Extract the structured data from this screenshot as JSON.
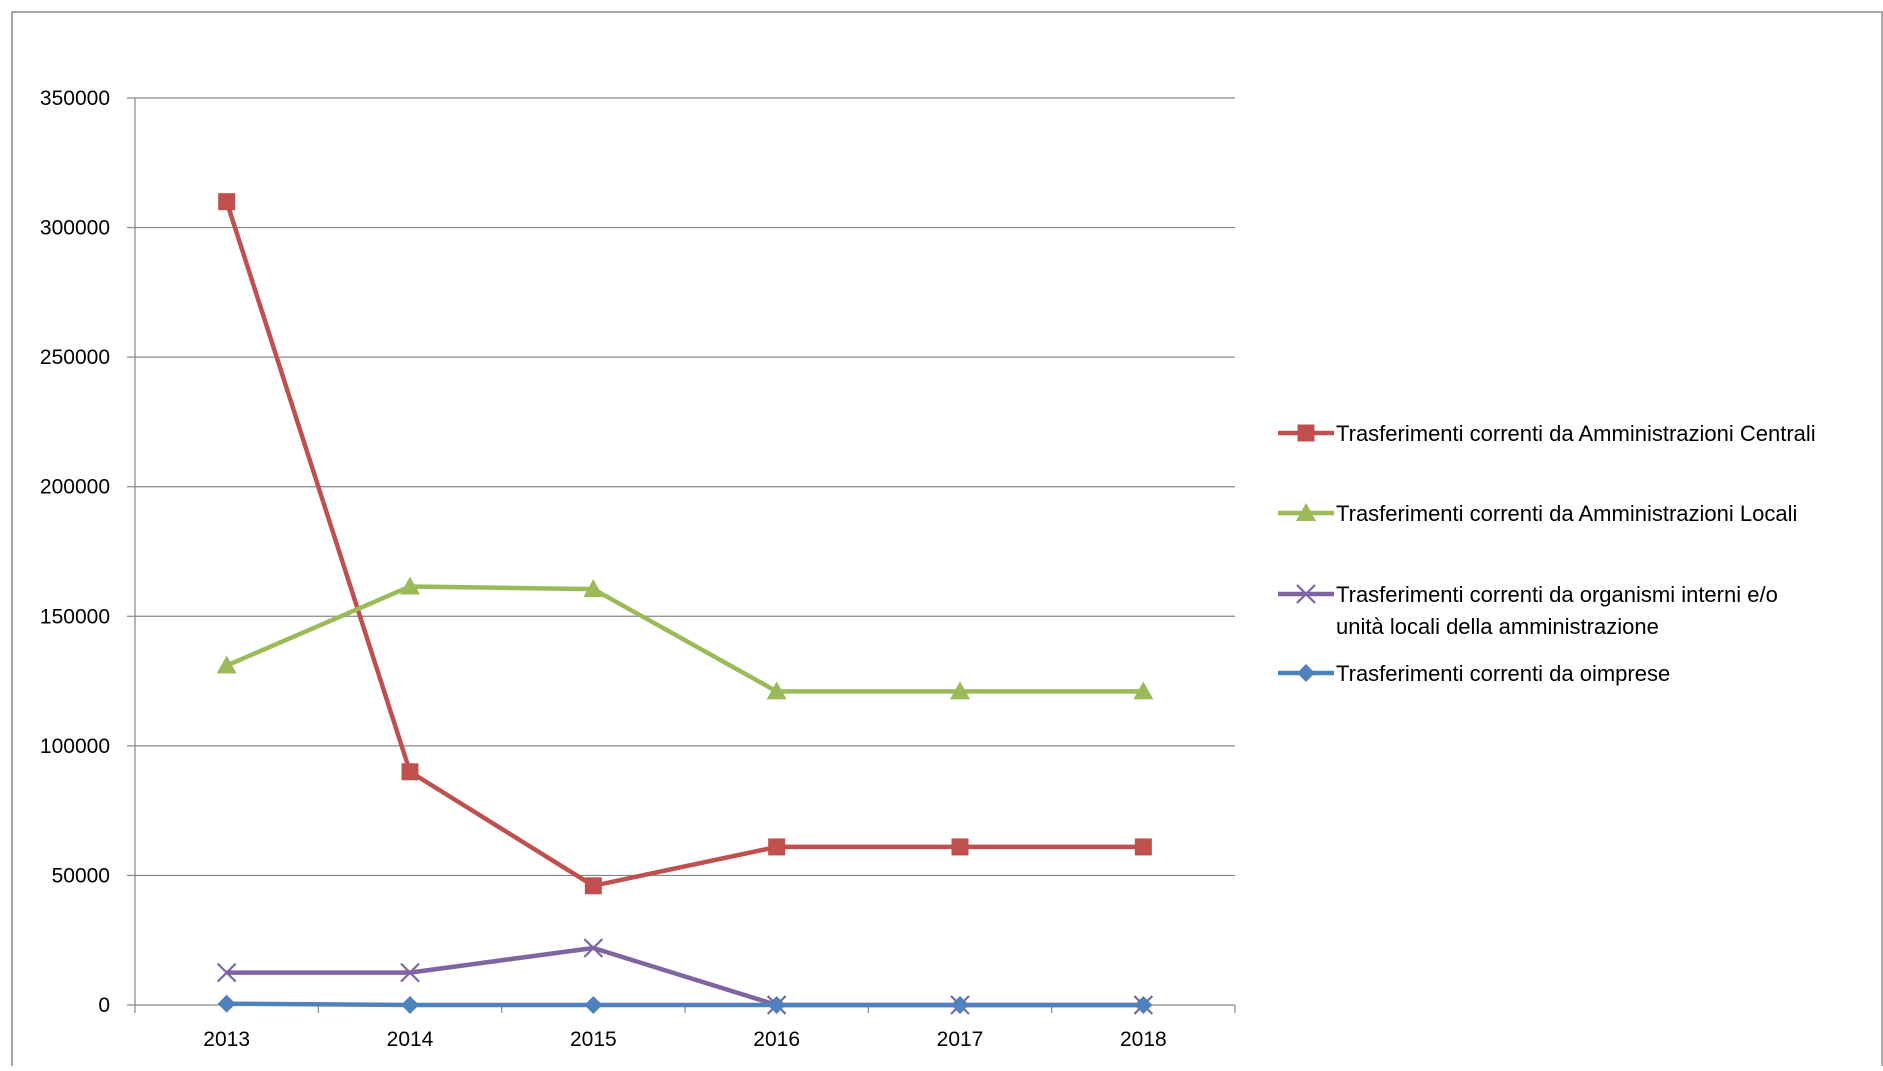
{
  "chart_data": {
    "type": "line",
    "categories": [
      "2013",
      "2014",
      "2015",
      "2016",
      "2017",
      "2018"
    ],
    "ylim": [
      0,
      350000
    ],
    "yticks": [
      0,
      50000,
      100000,
      150000,
      200000,
      250000,
      300000,
      350000
    ],
    "ytick_labels": [
      "0",
      "50000",
      "100000",
      "150000",
      "200000",
      "250000",
      "300000",
      "350000"
    ],
    "grid": true,
    "legend_position": "right",
    "series": [
      {
        "name": "Trasferimenti correnti da Amministrazioni Centrali",
        "color": "#c0504d",
        "marker": "square",
        "values": [
          310000,
          90000,
          46000,
          61000,
          61000,
          61000
        ]
      },
      {
        "name": "Trasferimenti correnti da Amministrazioni Locali",
        "color": "#9bbb59",
        "marker": "triangle",
        "values": [
          131000,
          161500,
          160500,
          121000,
          121000,
          121000
        ]
      },
      {
        "name": "Trasferimenti correnti da organismi interni e/o unità locali della amministrazione",
        "legend_lines": [
          "Trasferimenti correnti da organismi interni e/o",
          "unità locali della amministrazione"
        ],
        "color": "#8064a2",
        "marker": "x",
        "values": [
          12500,
          12500,
          22000,
          0,
          0,
          0
        ]
      },
      {
        "name": "Trasferimenti correnti da oimprese",
        "color": "#4f81bd",
        "marker": "diamond",
        "values": [
          500,
          0,
          0,
          0,
          0,
          0
        ]
      }
    ]
  }
}
